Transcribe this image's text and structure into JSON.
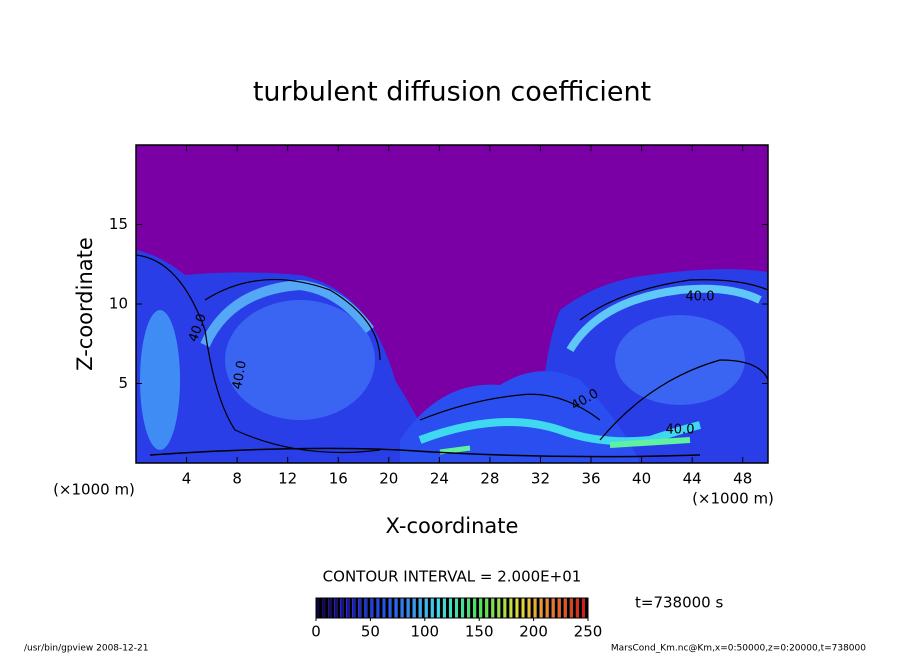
{
  "chart_data": {
    "type": "contour",
    "title": "turbulent diffusion coefficient",
    "x_label": "X-coordinate",
    "y_label": "Z-coordinate",
    "x_unit": "(×1000 m)",
    "y_unit": "(×1000 m)",
    "xlim": [
      0,
      50
    ],
    "xticks": [
      4,
      8,
      12,
      16,
      20,
      24,
      28,
      32,
      36,
      40,
      44,
      48
    ],
    "ylim": [
      0,
      20
    ],
    "yticks": [
      5,
      10,
      15
    ],
    "contour_labels": [
      "40.0",
      "40.0",
      "40.0",
      "40.0",
      "40.0"
    ],
    "contour_interval": "CONTOUR INTERVAL = 2.000E+01",
    "time_label": "t=738000 s",
    "colorbar": {
      "lim": [
        0,
        250
      ],
      "ticks": [
        0,
        50,
        100,
        150,
        200,
        250
      ]
    },
    "footer_left": "/usr/bin/gpview  2008-12-21",
    "footer_right": "MarsCond_Km.nc@Km,x=0:50000,z=0:20000,t=738000"
  }
}
